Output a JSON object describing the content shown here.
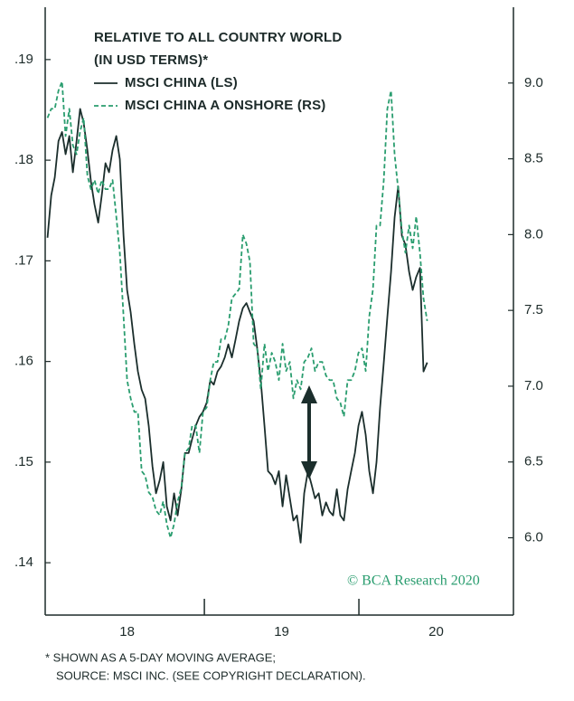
{
  "chart_data": {
    "type": "line",
    "legend_title": [
      "RELATIVE TO ALL COUNTRY WORLD",
      "(IN USD TERMS)*"
    ],
    "annotation": "© BCA Research 2020",
    "footnotes": [
      "* SHOWN AS A 5-DAY MOVING AVERAGE;",
      "SOURCE: MSCI INC. (SEE COPYRIGHT DECLARATION)."
    ],
    "xlim": [
      17.47,
      20.5
    ],
    "xticks": [
      18,
      19,
      20
    ],
    "ylim": [
      0.1348,
      0.1952
    ],
    "yticks": [
      {
        "value": 0.14,
        "label": ".14"
      },
      {
        "value": 0.15,
        "label": ".15"
      },
      {
        "value": 0.16,
        "label": ".16"
      },
      {
        "value": 0.17,
        "label": ".17"
      },
      {
        "value": 0.18,
        "label": ".18"
      },
      {
        "value": 0.19,
        "label": ".19"
      }
    ],
    "y2lim": [
      5.49,
      9.5
    ],
    "y2ticks": [
      {
        "value": 6,
        "label": "6.0"
      },
      6.5,
      {
        "value": 7,
        "label": "7.0"
      },
      7.5,
      {
        "value": 8,
        "label": "8.0"
      },
      8.5,
      {
        "value": 9,
        "label": "9.0"
      }
    ],
    "grid": false,
    "x": [
      17.485,
      17.509,
      17.532,
      17.556,
      17.579,
      17.602,
      17.626,
      17.649,
      17.673,
      17.696,
      17.719,
      17.743,
      17.766,
      17.789,
      17.813,
      17.836,
      17.86,
      17.883,
      17.906,
      17.93,
      17.953,
      17.977,
      18.0,
      18.023,
      18.047,
      18.07,
      18.094,
      18.117,
      18.14,
      18.164,
      18.187,
      18.211,
      18.234,
      18.257,
      18.281,
      18.304,
      18.327,
      18.351,
      18.374,
      18.398,
      18.421,
      18.444,
      18.468,
      18.491,
      18.515,
      18.538,
      18.561,
      18.585,
      18.608,
      18.632,
      18.655,
      18.678,
      18.702,
      18.725,
      18.749,
      18.772,
      18.795,
      18.819,
      18.842,
      18.865,
      18.889,
      18.912,
      18.936,
      18.959,
      18.982,
      19.006,
      19.029,
      19.053,
      19.076,
      19.099,
      19.123,
      19.146,
      19.17,
      19.193,
      19.216,
      19.24,
      19.263,
      19.287,
      19.31,
      19.333,
      19.357,
      19.38,
      19.403,
      19.427,
      19.45,
      19.474,
      19.497,
      19.52,
      19.544,
      19.567,
      19.591,
      19.614,
      19.637,
      19.661,
      19.684,
      19.708,
      19.731,
      19.754,
      19.778,
      19.801,
      19.825,
      19.848,
      19.871,
      19.895,
      19.918,
      19.942
    ],
    "series": [
      {
        "name": "MSCI CHINA (LS)",
        "color": "#1b2e2c",
        "dash": false,
        "axis": "y",
        "values": [
          0.1723,
          0.1765,
          0.1783,
          0.1819,
          0.1828,
          0.1806,
          0.1824,
          0.1788,
          0.1819,
          0.1851,
          0.1837,
          0.181,
          0.1779,
          0.1756,
          0.1738,
          0.1765,
          0.1797,
          0.1788,
          0.181,
          0.1824,
          0.1801,
          0.1725,
          0.1671,
          0.1649,
          0.1617,
          0.159,
          0.1572,
          0.1563,
          0.1536,
          0.1496,
          0.1469,
          0.1482,
          0.15,
          0.1456,
          0.1442,
          0.1469,
          0.1447,
          0.1473,
          0.1509,
          0.1509,
          0.1523,
          0.1536,
          0.1545,
          0.155,
          0.1559,
          0.1581,
          0.1577,
          0.159,
          0.1595,
          0.1604,
          0.1617,
          0.1604,
          0.1622,
          0.164,
          0.1653,
          0.1658,
          0.1649,
          0.164,
          0.1613,
          0.1581,
          0.1536,
          0.1491,
          0.1487,
          0.1478,
          0.1491,
          0.1456,
          0.1487,
          0.1464,
          0.1442,
          0.1447,
          0.142,
          0.1469,
          0.1491,
          0.1478,
          0.1464,
          0.1469,
          0.1447,
          0.146,
          0.1451,
          0.1447,
          0.1473,
          0.1447,
          0.1442,
          0.1473,
          0.1491,
          0.1509,
          0.1536,
          0.155,
          0.1527,
          0.1491,
          0.1469,
          0.15,
          0.1554,
          0.1599,
          0.1644,
          0.1689,
          0.1743,
          0.1774,
          0.1725,
          0.1716,
          0.1689,
          0.1671,
          0.1684,
          0.1693,
          0.159,
          0.1599
        ]
      },
      {
        "name": "MSCI CHINA A ONSHORE (RS)",
        "color": "#2a9d6f",
        "dash": true,
        "axis": "y2",
        "values": [
          8.77,
          8.83,
          8.83,
          8.95,
          9.01,
          8.65,
          8.83,
          8.59,
          8.53,
          8.68,
          8.77,
          8.39,
          8.3,
          8.36,
          8.27,
          8.36,
          8.3,
          8.3,
          8.36,
          8.12,
          7.88,
          7.46,
          7.04,
          6.92,
          6.83,
          6.83,
          6.44,
          6.41,
          6.3,
          6.27,
          6.18,
          6.15,
          6.24,
          6.09,
          6.0,
          6.09,
          6.24,
          6.33,
          6.56,
          6.59,
          6.74,
          6.74,
          6.56,
          6.83,
          6.86,
          7.04,
          7.16,
          7.16,
          7.31,
          7.31,
          7.4,
          7.58,
          7.61,
          7.64,
          8.0,
          7.94,
          7.82,
          7.28,
          7.25,
          6.98,
          7.28,
          7.1,
          7.22,
          7.16,
          7.04,
          7.28,
          7.1,
          7.16,
          6.92,
          7.04,
          6.98,
          7.16,
          7.19,
          7.25,
          7.1,
          7.16,
          7.16,
          7.07,
          7.04,
          7.04,
          6.92,
          6.89,
          6.8,
          7.04,
          7.04,
          7.1,
          7.22,
          7.25,
          7.1,
          7.46,
          7.64,
          8.06,
          8.06,
          8.36,
          8.83,
          8.95,
          8.53,
          8.3,
          8.03,
          7.88,
          8.06,
          7.91,
          8.12,
          7.88,
          7.58,
          7.43
        ]
      }
    ]
  }
}
